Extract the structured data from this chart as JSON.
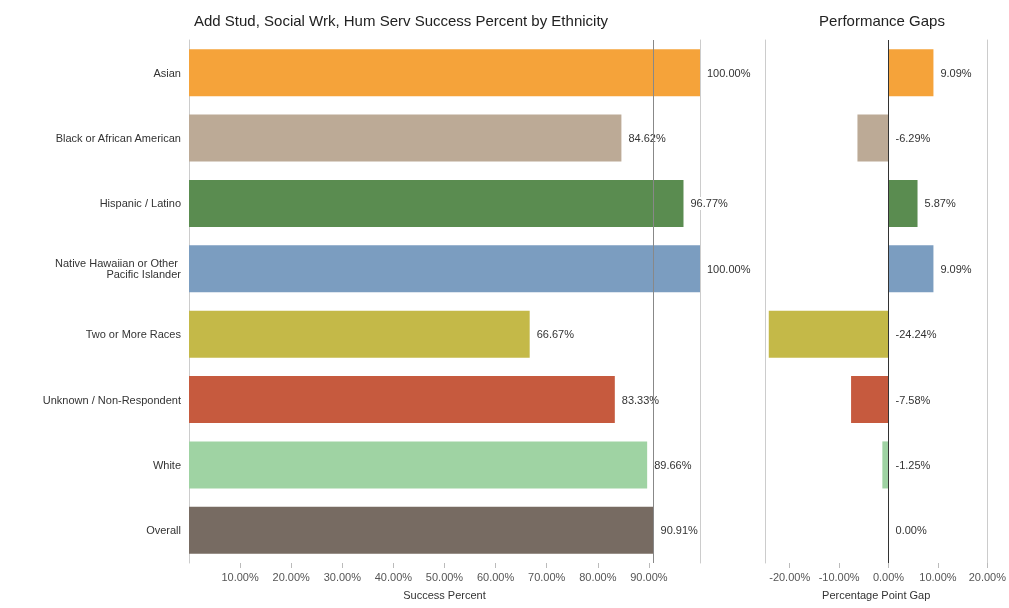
{
  "chart_data": [
    {
      "type": "bar",
      "orientation": "horizontal",
      "title": "Add Stud, Social Wrk, Hum Serv Success Percent by Ethnicity",
      "xlabel": "Success Percent",
      "categories": [
        "Asian",
        "Black or African American",
        "Hispanic / Latino",
        "Native Hawaiian or Other Pacific Islander",
        "Two or More Races",
        "Unknown / Non-Respondent",
        "White",
        "Overall"
      ],
      "values": [
        100,
        84.62,
        96.77,
        100,
        66.67,
        83.33,
        89.66,
        90.91
      ],
      "colors": [
        "#f5a33a",
        "#bcaa96",
        "#5a8c50",
        "#7b9dc0",
        "#c4b948",
        "#c65a3e",
        "#9fd3a3",
        "#776b62"
      ],
      "value_labels": [
        "100.00%",
        "84.62%",
        "96.77%",
        "100.00%",
        "66.67%",
        "83.33%",
        "89.66%",
        "90.91%"
      ],
      "xlim": [
        0,
        100
      ],
      "xticks": [
        {
          "value": 10,
          "label": "10.00%"
        },
        {
          "value": 20,
          "label": "20.00%"
        },
        {
          "value": 30,
          "label": "30.00%"
        },
        {
          "value": 40,
          "label": "40.00%"
        },
        {
          "value": 50,
          "label": "50.00%"
        },
        {
          "value": 60,
          "label": "60.00%"
        },
        {
          "value": 70,
          "label": "70.00%"
        },
        {
          "value": 80,
          "label": "80.00%"
        },
        {
          "value": 90,
          "label": "90.00%"
        }
      ],
      "ref_lines": [
        {
          "axis": "x",
          "value": 90.91,
          "color": "#888888"
        }
      ]
    },
    {
      "type": "bar",
      "orientation": "horizontal",
      "title": "Performance Gaps",
      "xlabel": "Percentage Point Gap",
      "categories": [
        "Asian",
        "Black or African American",
        "Hispanic / Latino",
        "Native Hawaiian or Other Pacific Islander",
        "Two or More Races",
        "Unknown / Non-Respondent",
        "White",
        "Overall"
      ],
      "values": [
        9.09,
        -6.29,
        5.87,
        9.09,
        -24.24,
        -7.58,
        -1.25,
        0.0
      ],
      "colors": [
        "#f5a33a",
        "#bcaa96",
        "#5a8c50",
        "#7b9dc0",
        "#c4b948",
        "#c65a3e",
        "#9fd3a3",
        "#776b62"
      ],
      "value_labels": [
        "9.09%",
        "-6.29%",
        "5.87%",
        "9.09%",
        "-24.24%",
        "-7.58%",
        "-1.25%",
        "0.00%"
      ],
      "xlim": [
        -25,
        20
      ],
      "xticks": [
        {
          "value": -20,
          "label": "-20.00%"
        },
        {
          "value": -10,
          "label": "-10.00%"
        },
        {
          "value": 0,
          "label": "0.00%"
        },
        {
          "value": 10,
          "label": "10.00%"
        },
        {
          "value": 20,
          "label": "20.00%"
        }
      ],
      "ref_lines": [
        {
          "axis": "x",
          "value": 0,
          "color": "#333333"
        }
      ],
      "tick_labels": "x"
    }
  ]
}
